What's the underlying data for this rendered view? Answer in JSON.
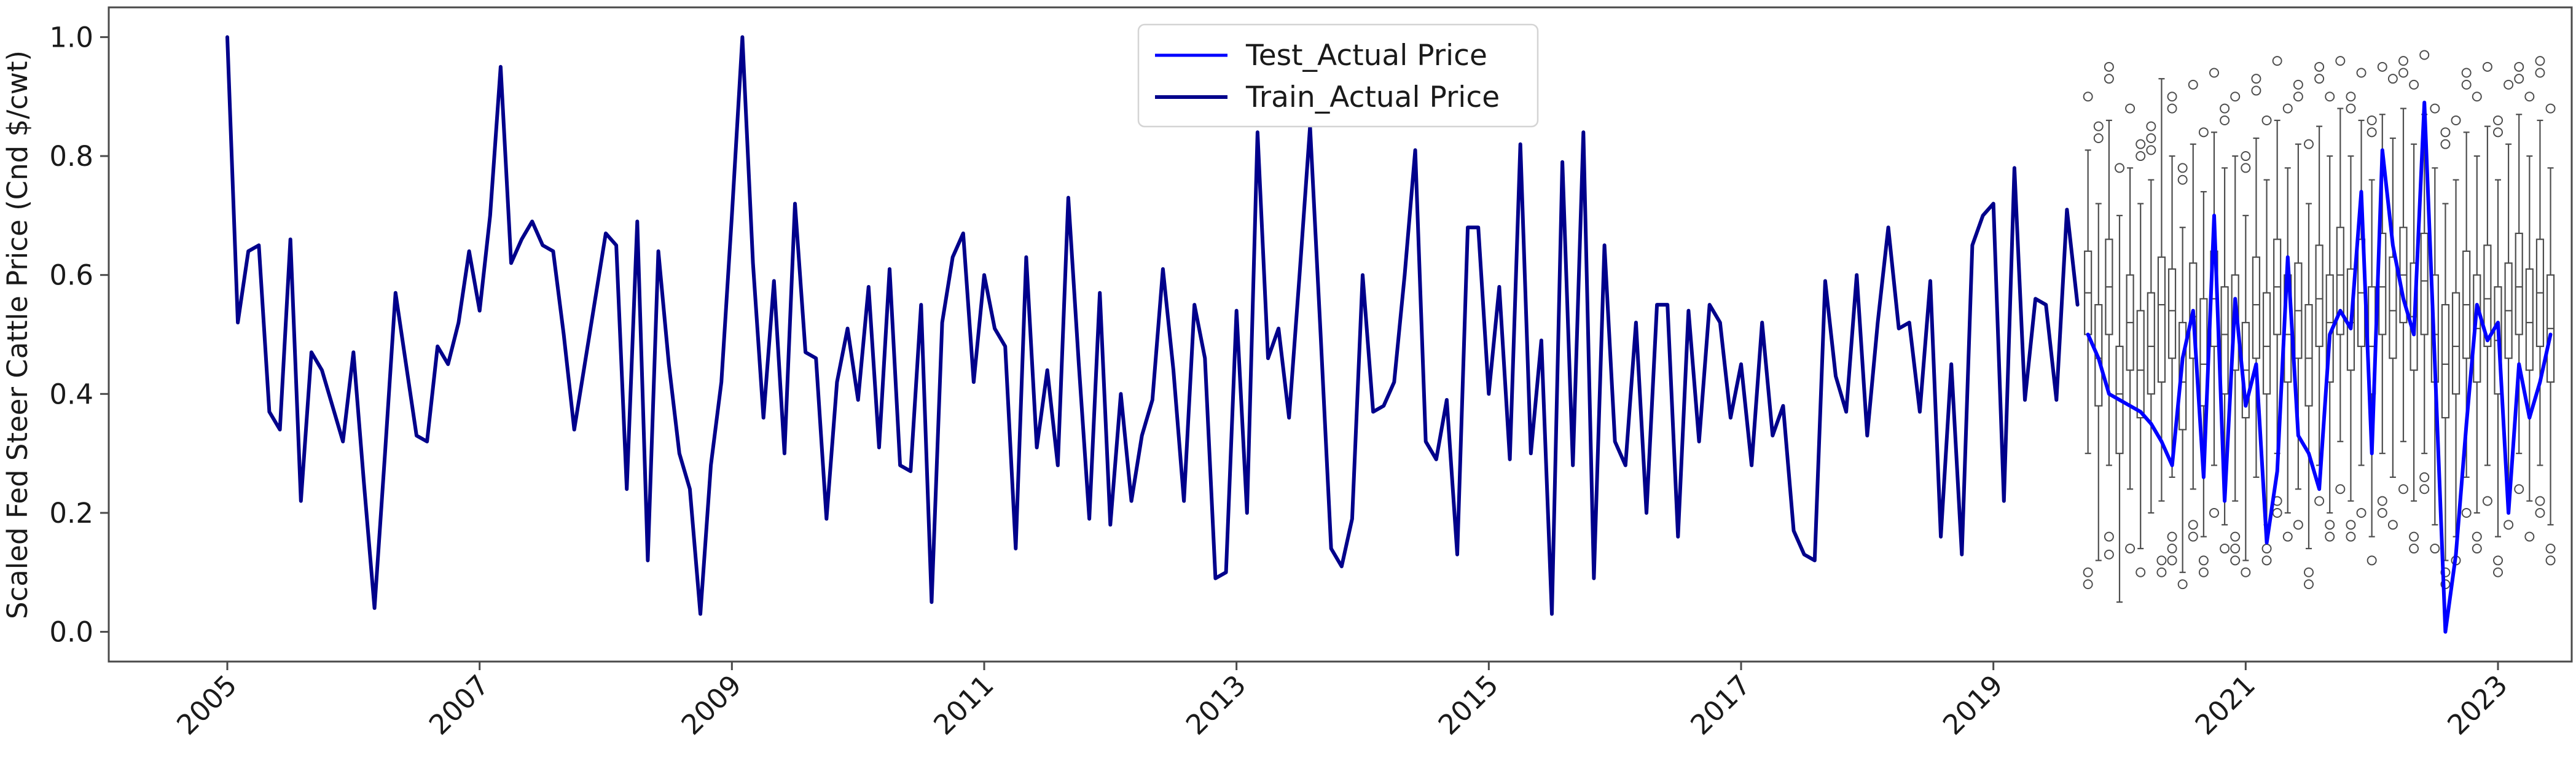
{
  "chart_data": {
    "type": "line+boxplot",
    "title": "",
    "xlabel": "",
    "ylabel": "Scaled Fed Steer Cattle Price (Cnd $/cwt)",
    "ylim": [
      -0.05,
      1.05
    ],
    "grid": false,
    "legend_position": "upper center",
    "yticks": [
      0.0,
      0.2,
      0.4,
      0.6,
      0.8,
      1.0
    ],
    "ytick_labels": [
      "0.0",
      "0.2",
      "0.4",
      "0.6",
      "0.8",
      "1.0"
    ],
    "xticks": [
      2005,
      2007,
      2009,
      2011,
      2013,
      2015,
      2017,
      2019,
      2021,
      2023
    ],
    "xtick_labels": [
      "2005",
      "2007",
      "2009",
      "2011",
      "2013",
      "2015",
      "2017",
      "2019",
      "2021",
      "2023"
    ],
    "legend": [
      {
        "label": "Test_Actual Price",
        "color": "#0000FF"
      },
      {
        "label": "Train_Actual Price",
        "color": "#00008B"
      }
    ],
    "colors": {
      "test_line": "#0000FF",
      "train_line": "#00008B",
      "box_stroke": "#4d4d4d",
      "spine": "#4a4a4a",
      "tick": "#4a4a4a",
      "legend_border": "#d4d4d4"
    },
    "series": [
      {
        "name": "Train_Actual Price",
        "color": "#00008B",
        "freq": "monthly",
        "start_year": 2005,
        "start_month": 1,
        "values": [
          1.0,
          0.52,
          0.64,
          0.65,
          0.37,
          0.34,
          0.66,
          0.22,
          0.47,
          0.44,
          0.38,
          0.32,
          0.47,
          0.25,
          0.04,
          0.3,
          0.57,
          0.45,
          0.33,
          0.32,
          0.48,
          0.45,
          0.52,
          0.64,
          0.54,
          0.7,
          0.95,
          0.62,
          0.66,
          0.69,
          0.65,
          0.64,
          0.5,
          0.34,
          0.45,
          0.56,
          0.67,
          0.65,
          0.24,
          0.69,
          0.12,
          0.64,
          0.45,
          0.3,
          0.24,
          0.03,
          0.28,
          0.42,
          0.7,
          1.0,
          0.62,
          0.36,
          0.59,
          0.3,
          0.72,
          0.47,
          0.46,
          0.19,
          0.42,
          0.51,
          0.39,
          0.58,
          0.31,
          0.61,
          0.28,
          0.27,
          0.55,
          0.05,
          0.52,
          0.63,
          0.67,
          0.42,
          0.6,
          0.51,
          0.48,
          0.14,
          0.63,
          0.31,
          0.44,
          0.28,
          0.73,
          0.45,
          0.19,
          0.57,
          0.18,
          0.4,
          0.22,
          0.33,
          0.39,
          0.61,
          0.44,
          0.22,
          0.55,
          0.46,
          0.09,
          0.1,
          0.54,
          0.2,
          0.84,
          0.46,
          0.51,
          0.36,
          0.6,
          0.85,
          0.5,
          0.14,
          0.11,
          0.19,
          0.6,
          0.37,
          0.38,
          0.42,
          0.6,
          0.81,
          0.32,
          0.29,
          0.39,
          0.13,
          0.68,
          0.68,
          0.4,
          0.58,
          0.29,
          0.82,
          0.3,
          0.49,
          0.03,
          0.79,
          0.28,
          0.84,
          0.09,
          0.65,
          0.32,
          0.28,
          0.52,
          0.2,
          0.55,
          0.55,
          0.16,
          0.54,
          0.32,
          0.55,
          0.52,
          0.36,
          0.45,
          0.28,
          0.52,
          0.33,
          0.38,
          0.17,
          0.13,
          0.12,
          0.59,
          0.43,
          0.37,
          0.6,
          0.33,
          0.52,
          0.68,
          0.51,
          0.52,
          0.37,
          0.59,
          0.16,
          0.45,
          0.13,
          0.65,
          0.7,
          0.72,
          0.22,
          0.78,
          0.39,
          0.56,
          0.55,
          0.39,
          0.71,
          0.55
        ]
      },
      {
        "name": "Test_Actual Price",
        "color": "#0000FF",
        "freq": "monthly",
        "start_year": 2019,
        "start_month": 10,
        "values": [
          0.5,
          0.46,
          0.4,
          0.39,
          0.38,
          0.37,
          0.35,
          0.32,
          0.28,
          0.46,
          0.54,
          0.26,
          0.7,
          0.22,
          0.56,
          0.38,
          0.45,
          0.15,
          0.27,
          0.63,
          0.33,
          0.3,
          0.24,
          0.5,
          0.54,
          0.51,
          0.74,
          0.3,
          0.81,
          0.65,
          0.56,
          0.5,
          0.89,
          0.45,
          0.0,
          0.13,
          0.35,
          0.55,
          0.49,
          0.52,
          0.2,
          0.45,
          0.36,
          0.42,
          0.5
        ]
      }
    ],
    "boxplots": {
      "freq": "monthly",
      "start_year": 2019,
      "start_month": 10,
      "stats": [
        {
          "q1": 0.5,
          "med": 0.57,
          "q3": 0.64,
          "lo": 0.3,
          "hi": 0.81,
          "out": [
            0.9,
            0.1,
            0.08
          ]
        },
        {
          "q1": 0.38,
          "med": 0.46,
          "q3": 0.55,
          "lo": 0.12,
          "hi": 0.72,
          "out": [
            0.85,
            0.83
          ]
        },
        {
          "q1": 0.5,
          "med": 0.58,
          "q3": 0.66,
          "lo": 0.28,
          "hi": 0.86,
          "out": [
            0.95,
            0.93,
            0.16,
            0.13
          ]
        },
        {
          "q1": 0.3,
          "med": 0.4,
          "q3": 0.48,
          "lo": 0.05,
          "hi": 0.7,
          "out": [
            0.78
          ]
        },
        {
          "q1": 0.44,
          "med": 0.52,
          "q3": 0.6,
          "lo": 0.24,
          "hi": 0.78,
          "out": [
            0.88,
            0.14
          ]
        },
        {
          "q1": 0.36,
          "med": 0.44,
          "q3": 0.54,
          "lo": 0.14,
          "hi": 0.72,
          "out": [
            0.82,
            0.8,
            0.1
          ]
        },
        {
          "q1": 0.4,
          "med": 0.48,
          "q3": 0.57,
          "lo": 0.2,
          "hi": 0.76,
          "out": [
            0.85,
            0.83,
            0.81
          ]
        },
        {
          "q1": 0.42,
          "med": 0.55,
          "q3": 0.63,
          "lo": 0.22,
          "hi": 0.93,
          "out": [
            0.12,
            0.1
          ]
        },
        {
          "q1": 0.46,
          "med": 0.54,
          "q3": 0.61,
          "lo": 0.26,
          "hi": 0.8,
          "out": [
            0.9,
            0.88,
            0.16,
            0.14,
            0.12
          ]
        },
        {
          "q1": 0.34,
          "med": 0.42,
          "q3": 0.52,
          "lo": 0.1,
          "hi": 0.68,
          "out": [
            0.78,
            0.76,
            0.08
          ]
        },
        {
          "q1": 0.46,
          "med": 0.53,
          "q3": 0.62,
          "lo": 0.24,
          "hi": 0.82,
          "out": [
            0.92,
            0.18,
            0.16
          ]
        },
        {
          "q1": 0.38,
          "med": 0.45,
          "q3": 0.56,
          "lo": 0.16,
          "hi": 0.74,
          "out": [
            0.84,
            0.12,
            0.1
          ]
        },
        {
          "q1": 0.48,
          "med": 0.56,
          "q3": 0.64,
          "lo": 0.28,
          "hi": 0.84,
          "out": [
            0.94,
            0.2
          ]
        },
        {
          "q1": 0.4,
          "med": 0.5,
          "q3": 0.58,
          "lo": 0.18,
          "hi": 0.78,
          "out": [
            0.88,
            0.86,
            0.14
          ]
        },
        {
          "q1": 0.44,
          "med": 0.52,
          "q3": 0.6,
          "lo": 0.22,
          "hi": 0.8,
          "out": [
            0.9,
            0.16,
            0.14,
            0.12
          ]
        },
        {
          "q1": 0.36,
          "med": 0.44,
          "q3": 0.52,
          "lo": 0.12,
          "hi": 0.7,
          "out": [
            0.8,
            0.78,
            0.1
          ]
        },
        {
          "q1": 0.46,
          "med": 0.55,
          "q3": 0.63,
          "lo": 0.26,
          "hi": 0.83,
          "out": [
            0.93,
            0.91
          ]
        },
        {
          "q1": 0.4,
          "med": 0.48,
          "q3": 0.57,
          "lo": 0.18,
          "hi": 0.76,
          "out": [
            0.86,
            0.14,
            0.12
          ]
        },
        {
          "q1": 0.5,
          "med": 0.58,
          "q3": 0.66,
          "lo": 0.3,
          "hi": 0.86,
          "out": [
            0.96,
            0.22,
            0.2
          ]
        },
        {
          "q1": 0.42,
          "med": 0.5,
          "q3": 0.6,
          "lo": 0.2,
          "hi": 0.78,
          "out": [
            0.88,
            0.16
          ]
        },
        {
          "q1": 0.46,
          "med": 0.54,
          "q3": 0.62,
          "lo": 0.24,
          "hi": 0.82,
          "out": [
            0.92,
            0.9,
            0.18
          ]
        },
        {
          "q1": 0.38,
          "med": 0.46,
          "q3": 0.55,
          "lo": 0.14,
          "hi": 0.72,
          "out": [
            0.82,
            0.1,
            0.08
          ]
        },
        {
          "q1": 0.48,
          "med": 0.56,
          "q3": 0.65,
          "lo": 0.28,
          "hi": 0.85,
          "out": [
            0.95,
            0.93,
            0.22
          ]
        },
        {
          "q1": 0.42,
          "med": 0.52,
          "q3": 0.6,
          "lo": 0.2,
          "hi": 0.8,
          "out": [
            0.9,
            0.18,
            0.16
          ]
        },
        {
          "q1": 0.5,
          "med": 0.6,
          "q3": 0.68,
          "lo": 0.32,
          "hi": 0.88,
          "out": [
            0.96,
            0.24
          ]
        },
        {
          "q1": 0.44,
          "med": 0.52,
          "q3": 0.61,
          "lo": 0.22,
          "hi": 0.8,
          "out": [
            0.9,
            0.88,
            0.18,
            0.16
          ]
        },
        {
          "q1": 0.48,
          "med": 0.57,
          "q3": 0.66,
          "lo": 0.28,
          "hi": 0.86,
          "out": [
            0.94,
            0.2
          ]
        },
        {
          "q1": 0.4,
          "med": 0.48,
          "q3": 0.58,
          "lo": 0.16,
          "hi": 0.76,
          "out": [
            0.86,
            0.84,
            0.12
          ]
        },
        {
          "q1": 0.5,
          "med": 0.58,
          "q3": 0.67,
          "lo": 0.3,
          "hi": 0.87,
          "out": [
            0.95,
            0.22,
            0.2
          ]
        },
        {
          "q1": 0.46,
          "med": 0.54,
          "q3": 0.63,
          "lo": 0.26,
          "hi": 0.83,
          "out": [
            0.93,
            0.18
          ]
        },
        {
          "q1": 0.52,
          "med": 0.6,
          "q3": 0.68,
          "lo": 0.32,
          "hi": 0.88,
          "out": [
            0.96,
            0.94,
            0.24
          ]
        },
        {
          "q1": 0.44,
          "med": 0.53,
          "q3": 0.62,
          "lo": 0.22,
          "hi": 0.82,
          "out": [
            0.92,
            0.16,
            0.14
          ]
        },
        {
          "q1": 0.5,
          "med": 0.59,
          "q3": 0.67,
          "lo": 0.3,
          "hi": 0.87,
          "out": [
            0.97,
            0.26,
            0.24
          ]
        },
        {
          "q1": 0.42,
          "med": 0.5,
          "q3": 0.6,
          "lo": 0.18,
          "hi": 0.78,
          "out": [
            0.88,
            0.14
          ]
        },
        {
          "q1": 0.36,
          "med": 0.45,
          "q3": 0.55,
          "lo": 0.12,
          "hi": 0.72,
          "out": [
            0.84,
            0.82,
            0.1,
            0.08
          ]
        },
        {
          "q1": 0.4,
          "med": 0.48,
          "q3": 0.57,
          "lo": 0.16,
          "hi": 0.76,
          "out": [
            0.86,
            0.12
          ]
        },
        {
          "q1": 0.46,
          "med": 0.55,
          "q3": 0.64,
          "lo": 0.26,
          "hi": 0.84,
          "out": [
            0.94,
            0.92,
            0.2
          ]
        },
        {
          "q1": 0.42,
          "med": 0.51,
          "q3": 0.6,
          "lo": 0.2,
          "hi": 0.8,
          "out": [
            0.9,
            0.16,
            0.14
          ]
        },
        {
          "q1": 0.48,
          "med": 0.56,
          "q3": 0.65,
          "lo": 0.28,
          "hi": 0.85,
          "out": [
            0.95,
            0.22
          ]
        },
        {
          "q1": 0.4,
          "med": 0.49,
          "q3": 0.58,
          "lo": 0.16,
          "hi": 0.76,
          "out": [
            0.86,
            0.84,
            0.12,
            0.1
          ]
        },
        {
          "q1": 0.46,
          "med": 0.54,
          "q3": 0.62,
          "lo": 0.24,
          "hi": 0.82,
          "out": [
            0.92,
            0.18
          ]
        },
        {
          "q1": 0.5,
          "med": 0.58,
          "q3": 0.67,
          "lo": 0.3,
          "hi": 0.87,
          "out": [
            0.95,
            0.93,
            0.24
          ]
        },
        {
          "q1": 0.44,
          "med": 0.52,
          "q3": 0.61,
          "lo": 0.22,
          "hi": 0.8,
          "out": [
            0.9,
            0.16
          ]
        },
        {
          "q1": 0.48,
          "med": 0.57,
          "q3": 0.66,
          "lo": 0.28,
          "hi": 0.86,
          "out": [
            0.96,
            0.94,
            0.22,
            0.2
          ]
        },
        {
          "q1": 0.42,
          "med": 0.51,
          "q3": 0.6,
          "lo": 0.18,
          "hi": 0.78,
          "out": [
            0.88,
            0.14,
            0.12
          ]
        }
      ]
    }
  }
}
